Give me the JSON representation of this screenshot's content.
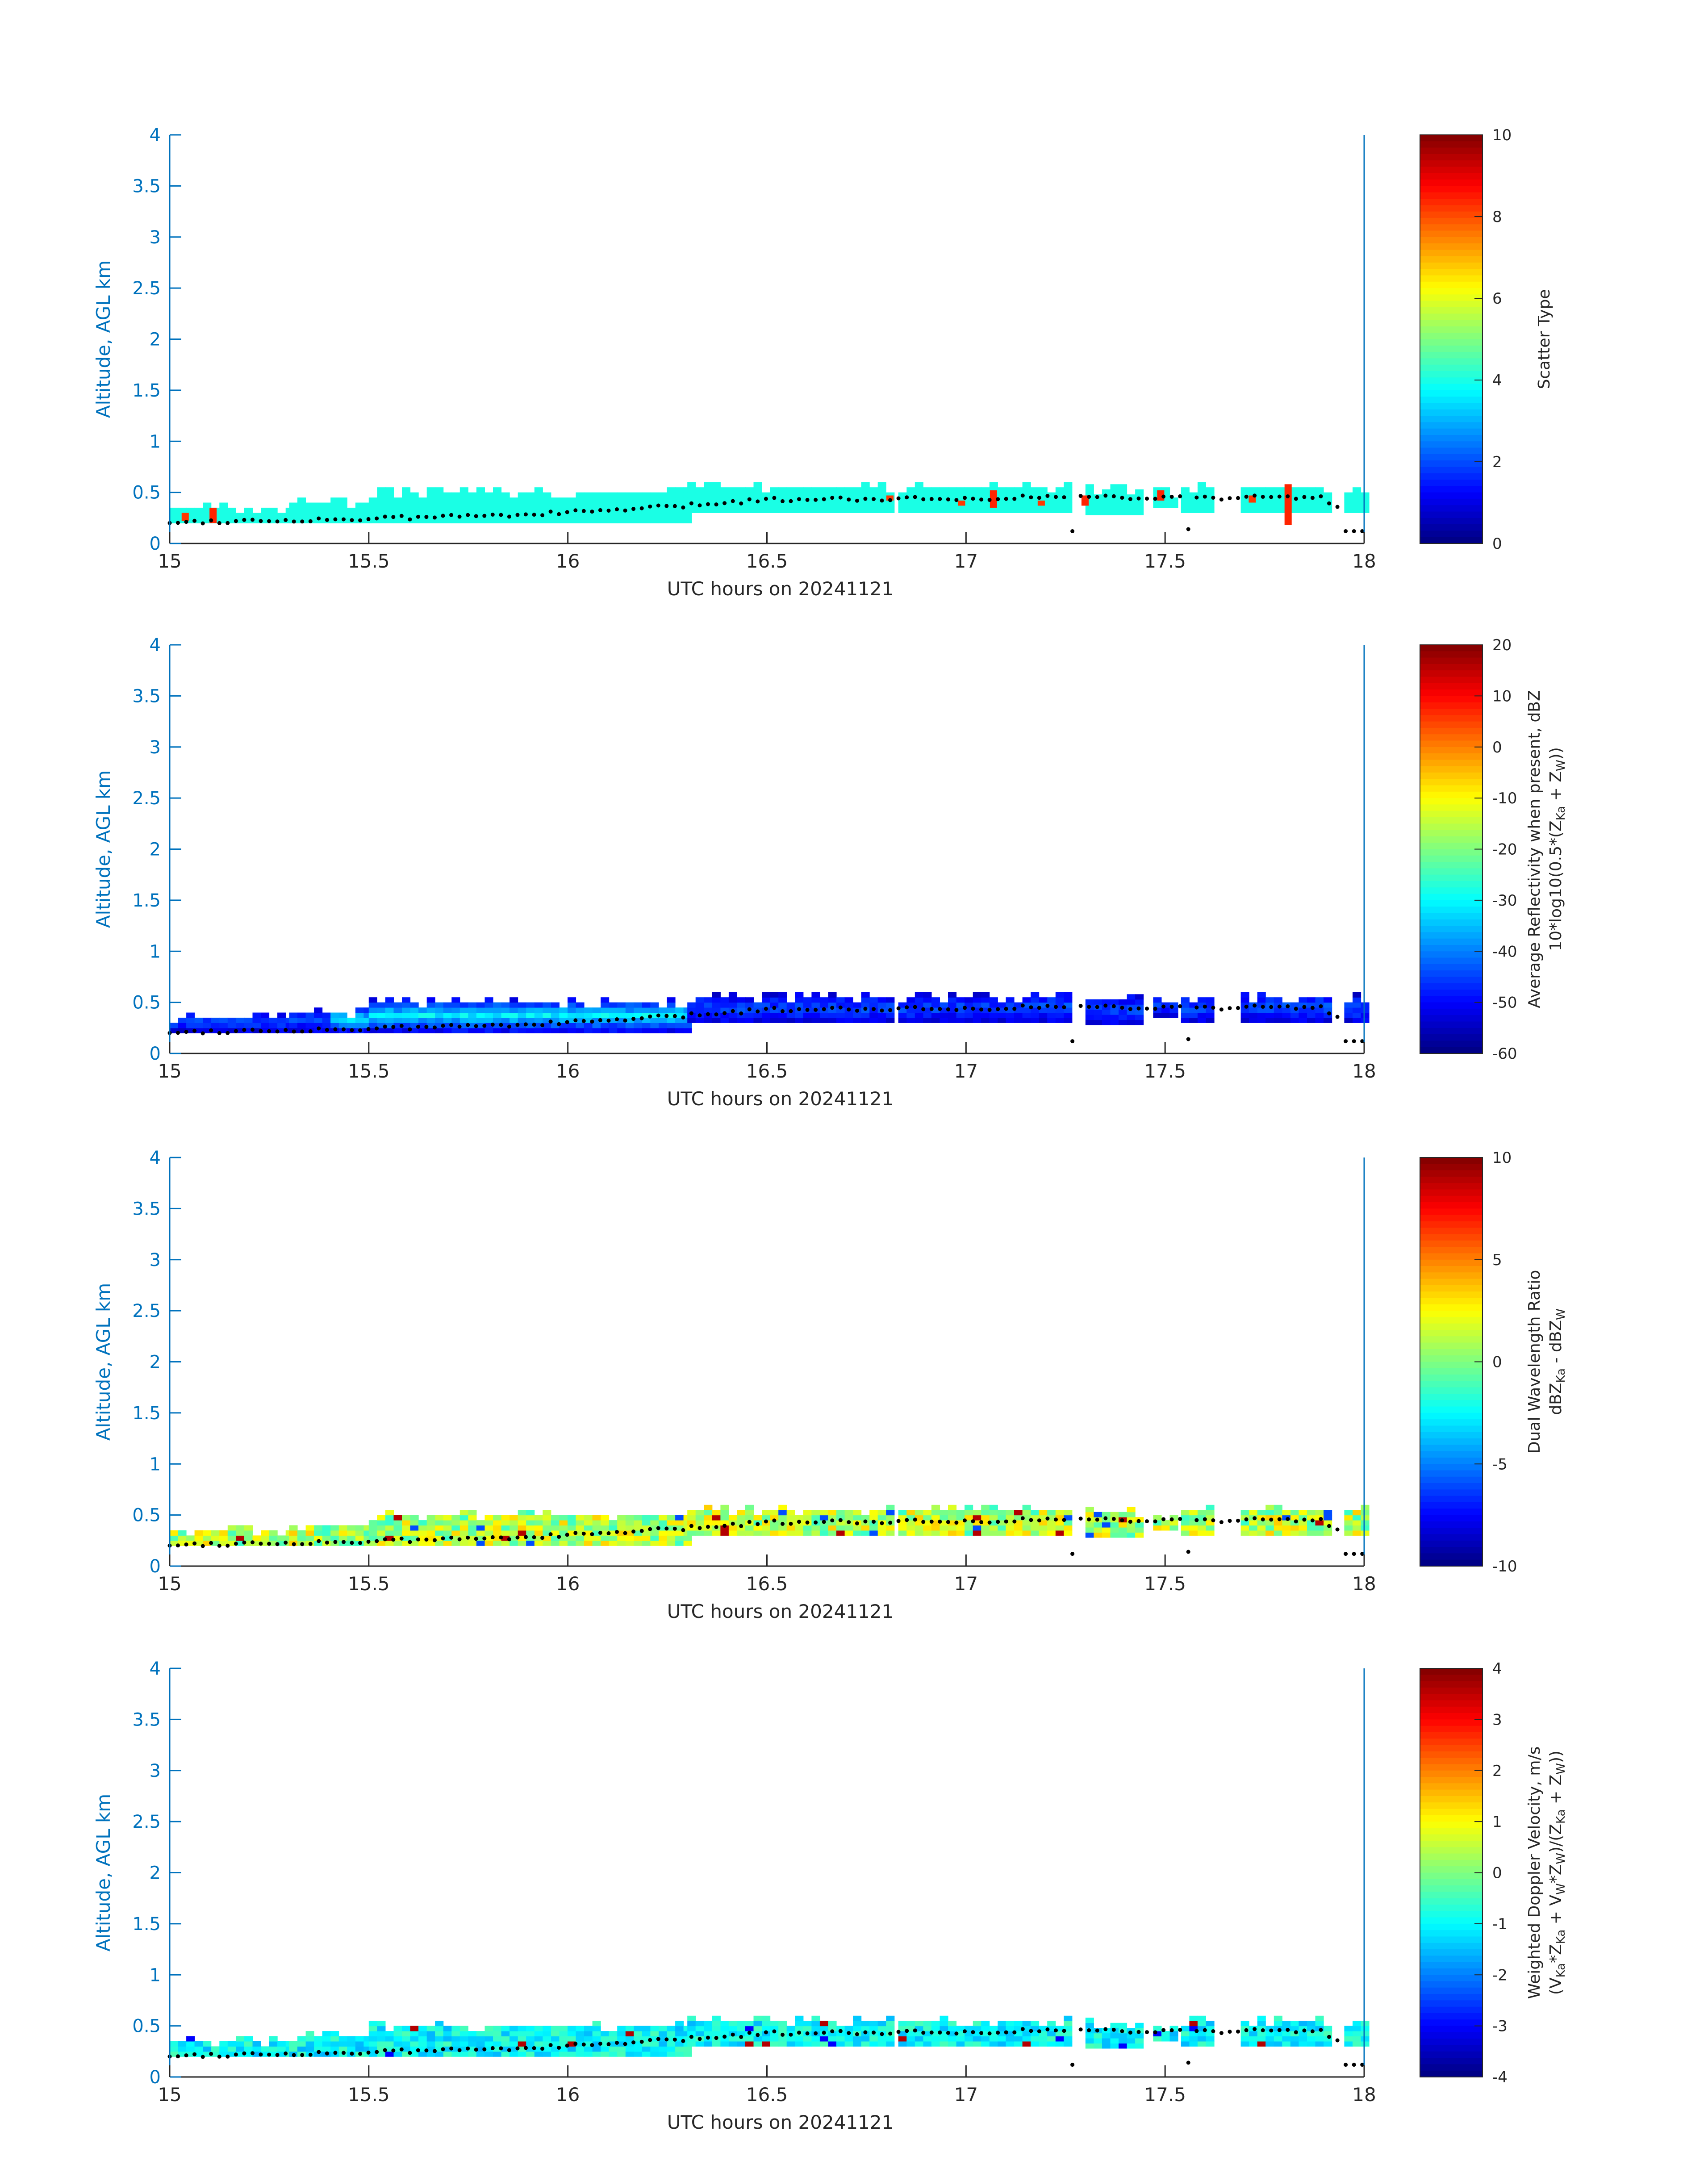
{
  "chart_data": [
    {
      "type": "heatmap",
      "xlabel": "UTC hours on 20241121",
      "ylabel": "Altitude, AGL km",
      "xlim": [
        15,
        18
      ],
      "ylim": [
        0,
        4
      ],
      "x_ticks": [
        "15",
        "15.5",
        "16",
        "16.5",
        "17",
        "17.5",
        "18"
      ],
      "y_ticks": [
        "0",
        "0.5",
        "1",
        "1.5",
        "2",
        "2.5",
        "3",
        "3.5",
        "4"
      ],
      "colorbar": {
        "label": "Scatter Type",
        "sublabel": "",
        "range": [
          0,
          10
        ],
        "ticks": [
          "0",
          "2",
          "4",
          "6",
          "8",
          "10"
        ],
        "colormap": "jet"
      },
      "field": {
        "typical_value": 4.0,
        "pattern": "uniform",
        "outliers": [
          {
            "x": 15.1,
            "bottom": 0.2,
            "top": 0.35,
            "value": 8.4
          },
          {
            "x": 15.03,
            "bottom": 0.22,
            "top": 0.3,
            "value": 8.2
          },
          {
            "x": 16.8,
            "bottom": 0.42,
            "top": 0.47,
            "value": 8.2
          },
          {
            "x": 16.98,
            "bottom": 0.37,
            "top": 0.42,
            "value": 8.2
          },
          {
            "x": 17.06,
            "bottom": 0.35,
            "top": 0.52,
            "value": 8.4
          },
          {
            "x": 17.18,
            "bottom": 0.37,
            "top": 0.42,
            "value": 8.2
          },
          {
            "x": 17.29,
            "bottom": 0.37,
            "top": 0.47,
            "value": 8.4
          },
          {
            "x": 17.48,
            "bottom": 0.42,
            "top": 0.52,
            "value": 8.4
          },
          {
            "x": 17.71,
            "bottom": 0.4,
            "top": 0.47,
            "value": 8.2
          },
          {
            "x": 17.8,
            "bottom": 0.18,
            "top": 0.58,
            "value": 8.4
          }
        ]
      },
      "cloud_base_km": "black dotted line along the lower boundary of the echo"
    },
    {
      "type": "heatmap",
      "xlabel": "UTC hours on 20241121",
      "ylabel": "Altitude, AGL km",
      "xlim": [
        15,
        18
      ],
      "ylim": [
        0,
        4
      ],
      "x_ticks": [
        "15",
        "15.5",
        "16",
        "16.5",
        "17",
        "17.5",
        "18"
      ],
      "y_ticks": [
        "0",
        "0.5",
        "1",
        "1.5",
        "2",
        "2.5",
        "3",
        "3.5",
        "4"
      ],
      "colorbar": {
        "label": "Average Reflectivity when present, dBZ",
        "sublabel_parts": [
          "10*log10(0.5*(Z",
          "Ka",
          " + Z",
          "W",
          "))"
        ],
        "range": [
          -60,
          20
        ],
        "ticks": [
          "-60",
          "-50",
          "-40",
          "-30",
          "-20",
          "-10",
          "0",
          "10",
          "20"
        ],
        "colormap": "jet"
      },
      "field": {
        "typical_value": -50,
        "pattern": "reflectivity",
        "outliers": []
      }
    },
    {
      "type": "heatmap",
      "xlabel": "UTC hours on 20241121",
      "ylabel": "Altitude, AGL km",
      "xlim": [
        15,
        18
      ],
      "ylim": [
        0,
        4
      ],
      "x_ticks": [
        "15",
        "15.5",
        "16",
        "16.5",
        "17",
        "17.5",
        "18"
      ],
      "y_ticks": [
        "0",
        "0.5",
        "1",
        "1.5",
        "2",
        "2.5",
        "3",
        "3.5",
        "4"
      ],
      "colorbar": {
        "label": "Dual Wavelength Ratio",
        "sublabel_parts": [
          "dBZ",
          "Ka",
          " - dBZ",
          "W",
          ""
        ],
        "range": [
          -10,
          10
        ],
        "ticks": [
          "-10",
          "-5",
          "0",
          "5",
          "10"
        ],
        "colormap": "jet"
      },
      "field": {
        "typical_value": 1,
        "pattern": "dwr",
        "outliers": []
      }
    },
    {
      "type": "heatmap",
      "xlabel": "UTC hours on 20241121",
      "ylabel": "Altitude, AGL km",
      "xlim": [
        15,
        18
      ],
      "ylim": [
        0,
        4
      ],
      "x_ticks": [
        "15",
        "15.5",
        "16",
        "16.5",
        "17",
        "17.5",
        "18"
      ],
      "y_ticks": [
        "0",
        "0.5",
        "1",
        "1.5",
        "2",
        "2.5",
        "3",
        "3.5",
        "4"
      ],
      "colorbar": {
        "label": "Weighted Doppler Velocity, m/s",
        "sublabel_parts": [
          "(V",
          "Ka",
          "*Z",
          "Ka",
          " + V",
          "W",
          "*Z",
          "W",
          ")/(Z",
          "Ka",
          " + Z",
          "W",
          "))"
        ],
        "range": [
          -4,
          4
        ],
        "ticks": [
          "-4",
          "-3",
          "-2",
          "-1",
          "0",
          "1",
          "2",
          "3",
          "4"
        ],
        "colormap": "jet"
      },
      "field": {
        "typical_value": -1,
        "pattern": "velocity",
        "outliers": []
      }
    }
  ],
  "echo_extent": {
    "segments": [
      {
        "x": [
          15.0,
          15.3
        ],
        "bottom": 0.2,
        "top": 0.35
      },
      {
        "x": [
          15.3,
          15.5
        ],
        "bottom": 0.2,
        "top": 0.4
      },
      {
        "x": [
          15.5,
          16.3
        ],
        "bottom": 0.2,
        "top": 0.47
      },
      {
        "x": [
          16.3,
          16.8
        ],
        "bottom": 0.3,
        "top": 0.52
      },
      {
        "x": [
          16.83,
          17.1
        ],
        "bottom": 0.3,
        "top": 0.52
      },
      {
        "x": [
          17.1,
          17.25
        ],
        "bottom": 0.3,
        "top": 0.55
      },
      {
        "x": [
          17.3,
          17.43
        ],
        "bottom": 0.28,
        "top": 0.52
      },
      {
        "x": [
          17.47,
          17.52
        ],
        "bottom": 0.35,
        "top": 0.5
      },
      {
        "x": [
          17.54,
          17.62
        ],
        "bottom": 0.3,
        "top": 0.52
      },
      {
        "x": [
          17.69,
          17.9
        ],
        "bottom": 0.3,
        "top": 0.55
      },
      {
        "x": [
          17.95,
          18.0
        ],
        "bottom": 0.3,
        "top": 0.52
      }
    ],
    "cloud_base_trend": [
      [
        15.0,
        0.21
      ],
      [
        15.5,
        0.24
      ],
      [
        16.0,
        0.3
      ],
      [
        16.3,
        0.37
      ],
      [
        16.5,
        0.43
      ],
      [
        16.8,
        0.44
      ],
      [
        17.0,
        0.44
      ],
      [
        17.25,
        0.46
      ],
      [
        17.5,
        0.45
      ],
      [
        17.9,
        0.45
      ],
      [
        18.0,
        0.12
      ]
    ]
  }
}
